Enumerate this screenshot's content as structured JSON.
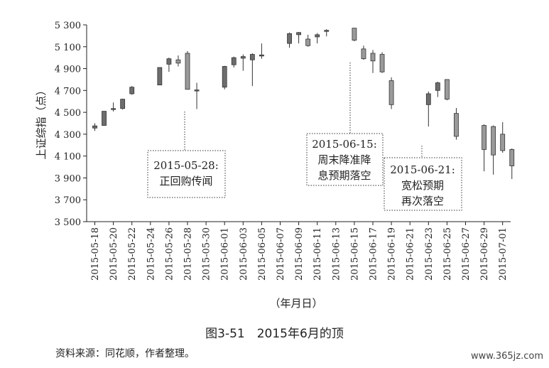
{
  "chart_data": {
    "type": "candlestick",
    "ylabel": "上证综指（点）",
    "xlabel": "（年月日）",
    "ylim": [
      3500,
      5300
    ],
    "yticks": [
      "3 500",
      "3 700",
      "3 900",
      "4 100",
      "4 300",
      "4 500",
      "4 700",
      "4 900",
      "5 100",
      "5 300"
    ],
    "ytick_values": [
      3500,
      3700,
      3900,
      4100,
      4300,
      4500,
      4700,
      4900,
      5100,
      5300
    ],
    "xtick_labels": [
      "2015-05-18",
      "2015-05-20",
      "2015-05-22",
      "2015-05-24",
      "2015-05-26",
      "2015-05-28",
      "2015-05-30",
      "2015-06-01",
      "2015-06-03",
      "2015-06-05",
      "2015-06-07",
      "2015-06-09",
      "2015-06-11",
      "2015-06-13",
      "2015-06-15",
      "2015-06-17",
      "2015-06-19",
      "2015-06-21",
      "2015-06-23",
      "2015-06-25",
      "2015-06-27",
      "2015-06-29",
      "2015-07-01"
    ],
    "candles": [
      {
        "date": "2015-05-18",
        "open": 4356,
        "close": 4376,
        "high": 4400,
        "low": 4330
      },
      {
        "date": "2015-05-19",
        "open": 4380,
        "close": 4510,
        "high": 4510,
        "low": 4378
      },
      {
        "date": "2015-05-20",
        "open": 4525,
        "close": 4535,
        "high": 4590,
        "low": 4508
      },
      {
        "date": "2015-05-21",
        "open": 4535,
        "close": 4620,
        "high": 4625,
        "low": 4525
      },
      {
        "date": "2015-05-22",
        "open": 4670,
        "close": 4730,
        "high": 4740,
        "low": 4660
      },
      {
        "date": "2015-05-25",
        "open": 4750,
        "close": 4910,
        "high": 4910,
        "low": 4750
      },
      {
        "date": "2015-05-26",
        "open": 4940,
        "close": 4990,
        "high": 5000,
        "low": 4870
      },
      {
        "date": "2015-05-27",
        "open": 4980,
        "close": 4950,
        "high": 5020,
        "low": 4920
      },
      {
        "date": "2015-05-28",
        "open": 5040,
        "close": 4710,
        "high": 5060,
        "low": 4710
      },
      {
        "date": "2015-05-29",
        "open": 4695,
        "close": 4705,
        "high": 4770,
        "low": 4530
      },
      {
        "date": "2015-06-01",
        "open": 4730,
        "close": 4920,
        "high": 4925,
        "low": 4710
      },
      {
        "date": "2015-06-02",
        "open": 4935,
        "close": 5000,
        "high": 5010,
        "low": 4910
      },
      {
        "date": "2015-06-03",
        "open": 4995,
        "close": 5010,
        "high": 5030,
        "low": 4880
      },
      {
        "date": "2015-06-04",
        "open": 4980,
        "close": 5030,
        "high": 5040,
        "low": 4740
      },
      {
        "date": "2015-06-05",
        "open": 5015,
        "close": 5025,
        "high": 5130,
        "low": 4990
      },
      {
        "date": "2015-06-08",
        "open": 5130,
        "close": 5220,
        "high": 5230,
        "low": 5090
      },
      {
        "date": "2015-06-09",
        "open": 5210,
        "close": 5230,
        "high": 5235,
        "low": 5130
      },
      {
        "date": "2015-06-10",
        "open": 5170,
        "close": 5110,
        "high": 5210,
        "low": 5100
      },
      {
        "date": "2015-06-11",
        "open": 5190,
        "close": 5210,
        "high": 5225,
        "low": 5130
      },
      {
        "date": "2015-06-12",
        "open": 5240,
        "close": 5250,
        "high": 5260,
        "low": 5195
      },
      {
        "date": "2015-06-15",
        "open": 5270,
        "close": 5160,
        "high": 5270,
        "low": 5150
      },
      {
        "date": "2015-06-16",
        "open": 5080,
        "close": 4990,
        "high": 5110,
        "low": 4980
      },
      {
        "date": "2015-06-17",
        "open": 5040,
        "close": 4970,
        "high": 5070,
        "low": 4860
      },
      {
        "date": "2015-06-18",
        "open": 5030,
        "close": 4870,
        "high": 5050,
        "low": 4860
      },
      {
        "date": "2015-06-19",
        "open": 4790,
        "close": 4570,
        "high": 4820,
        "low": 4530
      },
      {
        "date": "2015-06-23",
        "open": 4570,
        "close": 4670,
        "high": 4690,
        "low": 4370
      },
      {
        "date": "2015-06-24",
        "open": 4700,
        "close": 4770,
        "high": 4780,
        "low": 4640
      },
      {
        "date": "2015-06-25",
        "open": 4800,
        "close": 4620,
        "high": 4800,
        "low": 4610
      },
      {
        "date": "2015-06-26",
        "open": 4490,
        "close": 4280,
        "high": 4540,
        "low": 4250
      },
      {
        "date": "2015-06-29",
        "open": 4380,
        "close": 4160,
        "high": 4390,
        "low": 3960
      },
      {
        "date": "2015-06-30",
        "open": 4370,
        "close": 4110,
        "high": 4380,
        "low": 3930
      },
      {
        "date": "2015-07-01",
        "open": 4300,
        "close": 4150,
        "high": 4410,
        "low": 4130
      },
      {
        "date": "2015-07-02",
        "open": 4160,
        "close": 4010,
        "high": 4170,
        "low": 3890
      }
    ],
    "annotations": [
      {
        "lines": [
          "2015-05-28:",
          "正回购传闻"
        ]
      },
      {
        "lines": [
          "2015-06-15:",
          "周末降准降",
          "息预期落空"
        ]
      },
      {
        "lines": [
          "2015-06-21:",
          "宽松预期",
          "再次落空"
        ]
      }
    ]
  },
  "caption": "图3-51　2015年6月的顶",
  "source": "资料来源：同花顺，作者整理。",
  "watermark": "www.365jz.com"
}
